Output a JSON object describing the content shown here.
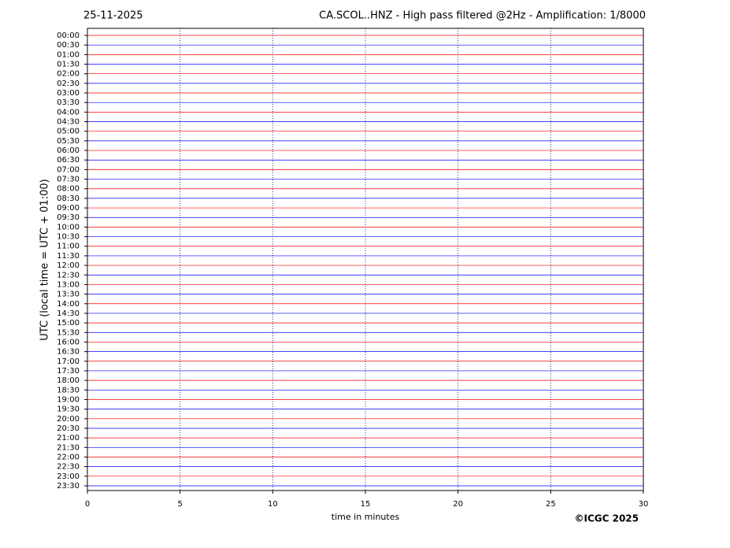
{
  "chart_data": {
    "type": "helicorder",
    "date": "25-11-2025",
    "title": "CA.SCOL..HNZ - High pass filtered @2Hz - Amplification: 1/8000",
    "ylabel": "UTC (local time = UTC + 01:00)",
    "xlabel": "time in minutes",
    "copyright": "©ICGC 2025",
    "categories": [
      "00:00",
      "00:30",
      "01:00",
      "01:30",
      "02:00",
      "02:30",
      "03:00",
      "03:30",
      "04:00",
      "04:30",
      "05:00",
      "05:30",
      "06:00",
      "06:30",
      "07:00",
      "07:30",
      "08:00",
      "08:30",
      "09:00",
      "09:30",
      "10:00",
      "10:30",
      "11:00",
      "11:30",
      "12:00",
      "12:30",
      "13:00",
      "13:30",
      "14:00",
      "14:30",
      "15:00",
      "15:30",
      "16:00",
      "16:30",
      "17:00",
      "17:30",
      "18:00",
      "18:30",
      "19:00",
      "19:30",
      "20:00",
      "20:30",
      "21:00",
      "21:30",
      "22:00",
      "22:30",
      "23:00",
      "23:30"
    ],
    "colors": [
      "#ff0000",
      "#0000ff"
    ],
    "xlim": [
      0,
      30
    ],
    "xticks": [
      0,
      5,
      10,
      15,
      20,
      25,
      30
    ],
    "grid": true
  }
}
